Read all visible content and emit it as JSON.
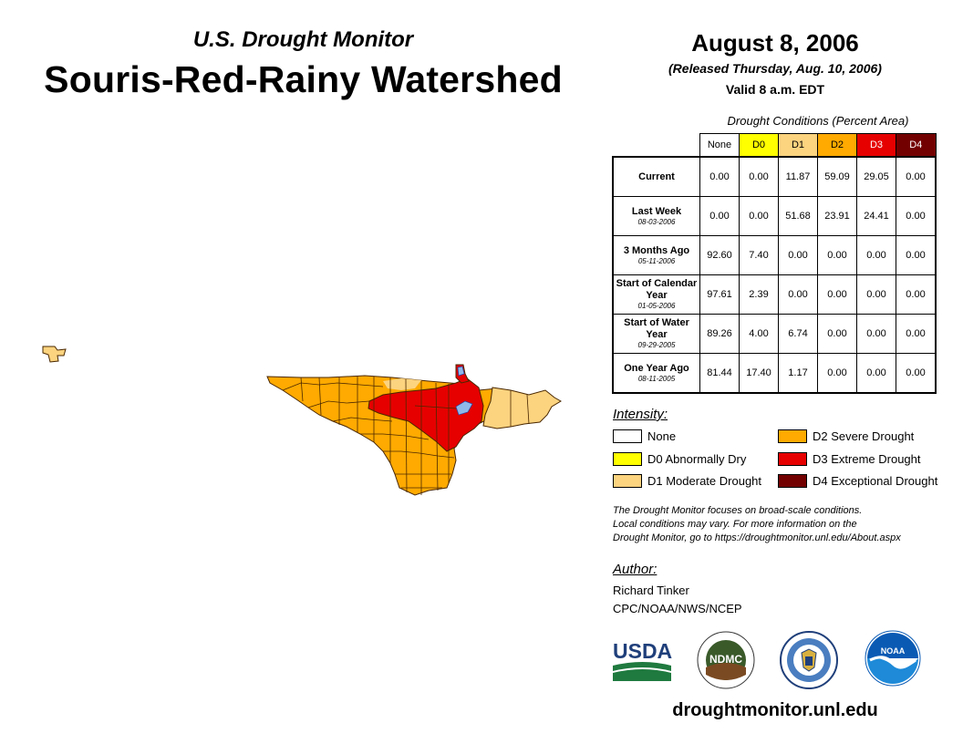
{
  "header": {
    "subtitle": "U.S. Drought Monitor",
    "title": "Souris-Red-Rainy Watershed",
    "date": "August 8, 2006",
    "released": "(Released Thursday, Aug. 10, 2006)",
    "valid": "Valid 8 a.m. EDT"
  },
  "table": {
    "title": "Drought Conditions (Percent Area)",
    "columns": [
      "None",
      "D0",
      "D1",
      "D2",
      "D3",
      "D4"
    ],
    "rows": [
      {
        "label": "Current",
        "sub": "",
        "values": [
          "0.00",
          "0.00",
          "11.87",
          "59.09",
          "29.05",
          "0.00"
        ]
      },
      {
        "label": "Last Week",
        "sub": "08-03-2006",
        "values": [
          "0.00",
          "0.00",
          "51.68",
          "23.91",
          "24.41",
          "0.00"
        ]
      },
      {
        "label": "3 Months Ago",
        "sub": "05-11-2006",
        "values": [
          "92.60",
          "7.40",
          "0.00",
          "0.00",
          "0.00",
          "0.00"
        ]
      },
      {
        "label": "Start of Calendar Year",
        "sub": "01-05-2006",
        "values": [
          "97.61",
          "2.39",
          "0.00",
          "0.00",
          "0.00",
          "0.00"
        ]
      },
      {
        "label": "Start of Water Year",
        "sub": "09-29-2005",
        "values": [
          "89.26",
          "4.00",
          "6.74",
          "0.00",
          "0.00",
          "0.00"
        ]
      },
      {
        "label": "One Year Ago",
        "sub": "08-11-2005",
        "values": [
          "81.44",
          "17.40",
          "1.17",
          "0.00",
          "0.00",
          "0.00"
        ]
      }
    ]
  },
  "legend": {
    "title": "Intensity:",
    "items": [
      {
        "label": "None",
        "color": "#ffffff"
      },
      {
        "label": "D0 Abnormally Dry",
        "color": "#ffff00"
      },
      {
        "label": "D1 Moderate Drought",
        "color": "#fcd37f"
      },
      {
        "label": "D2 Severe Drought",
        "color": "#ffaa00"
      },
      {
        "label": "D3 Extreme Drought",
        "color": "#e60000"
      },
      {
        "label": "D4 Exceptional Drought",
        "color": "#730000"
      }
    ]
  },
  "disclaimer": [
    "The Drought Monitor focuses on broad-scale conditions.",
    "Local conditions may vary. For more information on the",
    "Drought Monitor, go to https://droughtmonitor.unl.edu/About.aspx"
  ],
  "author": {
    "title": "Author:",
    "name": "Richard Tinker",
    "org": "CPC/NOAA/NWS/NCEP"
  },
  "logos": {
    "usda": "USDA",
    "ndmc": "NDMC",
    "noaa": "NOAA"
  },
  "footer_url": "droughtmonitor.unl.edu",
  "colors": {
    "d0": "#ffff00",
    "d1": "#fcd37f",
    "d2": "#ffaa00",
    "d3": "#e60000",
    "d4": "#730000",
    "water": "#8fb8e8",
    "county_line": "#4a2800",
    "usda_blue": "#1f3f7a",
    "usda_green": "#1f7a3f",
    "noaa_blue": "#0a5ab4"
  }
}
